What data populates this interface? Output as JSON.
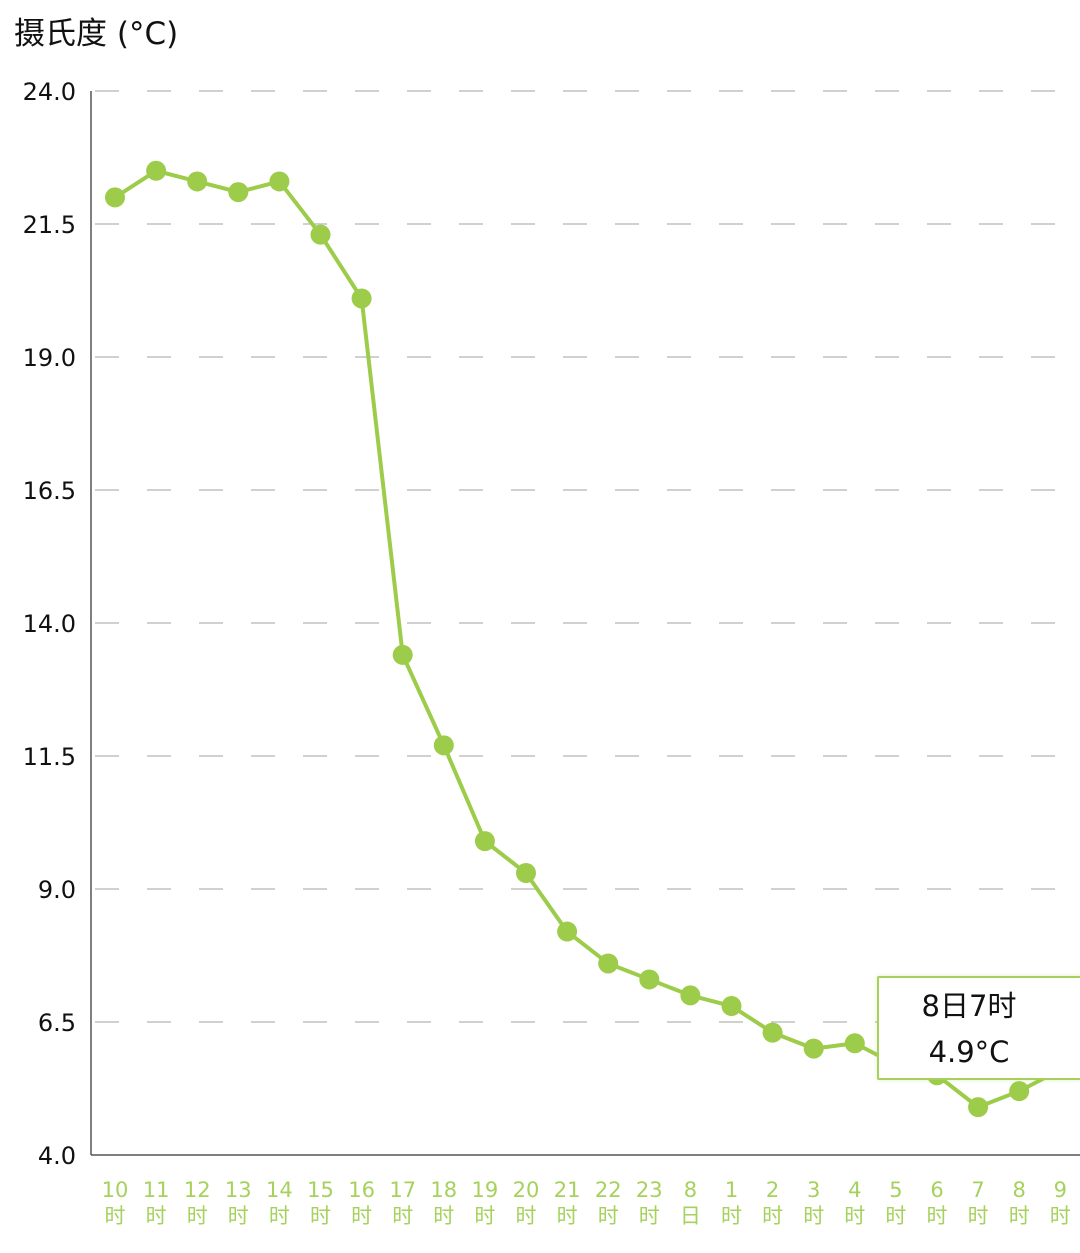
{
  "header": {
    "unit_title": "摄氏度 (°C)"
  },
  "colors": {
    "line": "#9ccc4a",
    "marker": "#9ccc4a",
    "xtick_text": "#a6d15c",
    "ytick_text": "#111111",
    "grid": "#b5b5b5",
    "axis": "#555555"
  },
  "tooltip": {
    "time": "8日7时",
    "value": "4.9°C"
  },
  "chart_data": {
    "type": "line",
    "ylabel": "摄氏度 (°C)",
    "ylim": [
      4.0,
      24.0
    ],
    "yticks": [
      "24.0",
      "21.5",
      "19.0",
      "16.5",
      "14.0",
      "11.5",
      "9.0",
      "6.5",
      "4.0"
    ],
    "grid": "horizontal dashed",
    "categories": [
      [
        "10",
        "时"
      ],
      [
        "11",
        "时"
      ],
      [
        "12",
        "时"
      ],
      [
        "13",
        "时"
      ],
      [
        "14",
        "时"
      ],
      [
        "15",
        "时"
      ],
      [
        "16",
        "时"
      ],
      [
        "17",
        "时"
      ],
      [
        "18",
        "时"
      ],
      [
        "19",
        "时"
      ],
      [
        "20",
        "时"
      ],
      [
        "21",
        "时"
      ],
      [
        "22",
        "时"
      ],
      [
        "23",
        "时"
      ],
      [
        "8",
        "日"
      ],
      [
        "1",
        "时"
      ],
      [
        "2",
        "时"
      ],
      [
        "3",
        "时"
      ],
      [
        "4",
        "时"
      ],
      [
        "5",
        "时"
      ],
      [
        "6",
        "时"
      ],
      [
        "7",
        "时"
      ],
      [
        "8",
        "时"
      ],
      [
        "9",
        "时"
      ]
    ],
    "series": [
      {
        "values": [
          22.0,
          22.5,
          22.3,
          22.1,
          22.3,
          21.3,
          20.1,
          13.4,
          11.7,
          9.9,
          9.3,
          8.2,
          7.6,
          7.3,
          7.0,
          6.8,
          6.3,
          6.0,
          6.1,
          5.7,
          5.5,
          4.9,
          5.2,
          5.6
        ]
      }
    ]
  }
}
